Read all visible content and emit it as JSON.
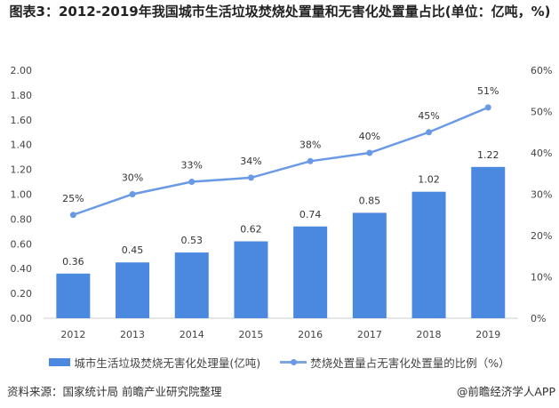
{
  "chart_data": {
    "type": "bar+line",
    "title": "图表3：2012-2019年我国城市生活垃圾焚烧处置量和无害化处置量占比(单位：亿吨，%)",
    "categories": [
      "2012",
      "2013",
      "2014",
      "2015",
      "2016",
      "2017",
      "2018",
      "2019"
    ],
    "series": [
      {
        "name": "城市生活垃圾焚烧无害化处理量(亿吨)",
        "type": "bar",
        "axis": "left",
        "values": [
          0.36,
          0.45,
          0.53,
          0.62,
          0.74,
          0.85,
          1.02,
          1.22
        ],
        "labels": [
          "0.36",
          "0.45",
          "0.53",
          "0.62",
          "0.74",
          "0.85",
          "1.02",
          "1.22"
        ],
        "color": "#4a89df"
      },
      {
        "name": "焚烧处置量占无害化处置量的比例（%）",
        "type": "line",
        "axis": "right",
        "values": [
          25,
          30,
          33,
          34,
          38,
          40,
          45,
          51
        ],
        "labels": [
          "25%",
          "30%",
          "33%",
          "34%",
          "38%",
          "40%",
          "45%",
          "51%"
        ],
        "color": "#6a9ae6"
      }
    ],
    "left_axis": {
      "range": [
        0,
        2
      ],
      "ticks": [
        "0.00",
        "0.20",
        "0.40",
        "0.60",
        "0.80",
        "1.00",
        "1.20",
        "1.40",
        "1.60",
        "1.80",
        "2.00"
      ]
    },
    "right_axis": {
      "range": [
        0,
        60
      ],
      "ticks": [
        "0%",
        "10%",
        "20%",
        "30%",
        "40%",
        "50%",
        "60%"
      ]
    },
    "grid": false,
    "legend": "bottom"
  },
  "source": "资料来源：国家统计局 前瞻产业研究院整理",
  "brand": "@前瞻经济学人APP"
}
